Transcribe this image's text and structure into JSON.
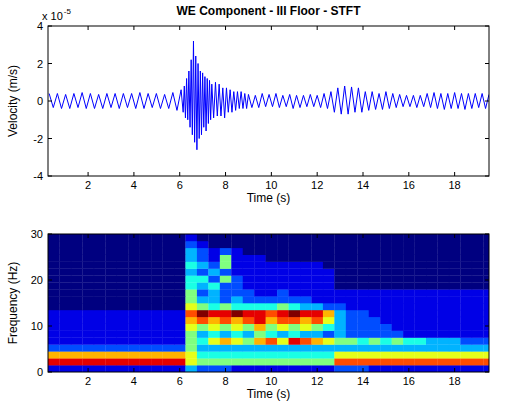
{
  "chart_data": [
    {
      "type": "line",
      "title": "WE Component - III Floor - STFT",
      "x_label": "Time (s)",
      "y_label": "Velocity (m/s)",
      "y_scale_label": {
        "base": "x 10",
        "exponent": "-5"
      },
      "xlim": [
        0.25,
        19.5
      ],
      "ylim": [
        -4,
        4
      ],
      "xticks": [
        2,
        4,
        6,
        8,
        10,
        12,
        14,
        16,
        18
      ],
      "yticks": [
        -4,
        -2,
        0,
        2,
        4
      ],
      "x": [
        0.3,
        0.48,
        0.66,
        0.84,
        1.02,
        1.2,
        1.38,
        1.56,
        1.74,
        1.92,
        2.1,
        2.28,
        2.46,
        2.64,
        2.82,
        3.0,
        3.18,
        3.36,
        3.54,
        3.72,
        3.9,
        4.08,
        4.26,
        4.44,
        4.62,
        4.8,
        4.98,
        5.16,
        5.34,
        5.52,
        5.7,
        5.88,
        6.06,
        6.15,
        6.2,
        6.25,
        6.3,
        6.35,
        6.4,
        6.45,
        6.5,
        6.55,
        6.6,
        6.65,
        6.7,
        6.75,
        6.8,
        6.85,
        6.9,
        6.95,
        7.0,
        7.05,
        7.1,
        7.15,
        7.2,
        7.25,
        7.3,
        7.35,
        7.4,
        7.48,
        7.56,
        7.64,
        7.72,
        7.8,
        7.88,
        7.96,
        8.04,
        8.12,
        8.2,
        8.28,
        8.36,
        8.44,
        8.52,
        8.6,
        8.68,
        8.76,
        8.84,
        8.92,
        9.0,
        9.15,
        9.3,
        9.45,
        9.6,
        9.75,
        9.9,
        10.05,
        10.2,
        10.35,
        10.5,
        10.65,
        10.8,
        10.95,
        11.1,
        11.25,
        11.4,
        11.55,
        11.7,
        11.85,
        12.0,
        12.15,
        12.3,
        12.45,
        12.6,
        12.75,
        12.9,
        13.05,
        13.2,
        13.35,
        13.5,
        13.65,
        13.8,
        13.95,
        14.1,
        14.25,
        14.4,
        14.55,
        14.7,
        14.85,
        15.0,
        15.15,
        15.3,
        15.45,
        15.6,
        15.75,
        15.9,
        16.05,
        16.2,
        16.35,
        16.5,
        16.65,
        16.8,
        16.95,
        17.1,
        17.25,
        17.4,
        17.55,
        17.7,
        17.85,
        18.0,
        18.15,
        18.3,
        18.45,
        18.6,
        18.75,
        18.9,
        19.05,
        19.2,
        19.35,
        19.5
      ],
      "series": [
        {
          "color": "#0000ff",
          "values": [
            0.4,
            -0.35,
            0.4,
            -0.4,
            0.35,
            -0.4,
            0.4,
            -0.35,
            0.45,
            -0.4,
            0.4,
            -0.4,
            0.35,
            -0.4,
            0.4,
            -0.35,
            0.4,
            -0.4,
            0.4,
            -0.35,
            0.4,
            -0.4,
            0.45,
            -0.4,
            0.4,
            -0.35,
            0.4,
            -0.4,
            0.35,
            -0.4,
            0.45,
            -0.5,
            0.6,
            -0.6,
            0.8,
            -0.9,
            1.2,
            -1.0,
            1.6,
            -1.4,
            2.2,
            -1.8,
            3.2,
            -2.2,
            2.4,
            -2.6,
            2.0,
            -2.0,
            1.6,
            -1.8,
            1.5,
            -1.4,
            1.3,
            -1.6,
            1.2,
            -1.2,
            1.1,
            -1.0,
            0.9,
            -0.9,
            1.0,
            -0.8,
            0.9,
            -0.8,
            0.7,
            -0.9,
            0.7,
            -0.6,
            0.6,
            -0.6,
            0.5,
            -0.5,
            0.5,
            -0.4,
            0.5,
            -0.4,
            0.4,
            -0.4,
            0.35,
            -0.35,
            0.3,
            -0.35,
            0.4,
            -0.3,
            0.35,
            -0.3,
            0.4,
            -0.35,
            0.3,
            -0.3,
            0.35,
            -0.4,
            0.3,
            -0.35,
            0.3,
            -0.3,
            0.35,
            -0.3,
            0.3,
            -0.35,
            0.4,
            -0.4,
            0.5,
            -0.6,
            0.7,
            -0.7,
            0.8,
            -0.7,
            0.75,
            -0.6,
            0.7,
            -0.6,
            0.5,
            -0.5,
            0.5,
            -0.45,
            0.4,
            -0.45,
            0.5,
            -0.4,
            0.4,
            -0.35,
            0.35,
            -0.3,
            0.3,
            -0.3,
            0.3,
            -0.35,
            0.3,
            -0.3,
            0.4,
            -0.35,
            0.45,
            -0.4,
            0.4,
            -0.45,
            0.4,
            -0.4,
            0.45,
            -0.4,
            0.4,
            -0.45,
            0.4,
            -0.4,
            0.4,
            -0.35,
            0.4,
            -0.4,
            0.35
          ]
        }
      ]
    },
    {
      "type": "heatmap",
      "x_label": "Time (s)",
      "y_label": "Frequency (Hz)",
      "xlim": [
        0.25,
        19.5
      ],
      "ylim": [
        0,
        30
      ],
      "xticks": [
        2,
        4,
        6,
        8,
        10,
        12,
        14,
        16,
        18
      ],
      "yticks": [
        0,
        10,
        20,
        30
      ],
      "color": "jet",
      "color_range": [
        0,
        10
      ],
      "x_edges": [
        0.25,
        0.75,
        1.25,
        1.75,
        2.25,
        2.75,
        3.25,
        3.75,
        4.25,
        4.75,
        5.25,
        5.75,
        6.25,
        6.75,
        7.25,
        7.75,
        8.25,
        8.75,
        9.25,
        9.75,
        10.25,
        10.75,
        11.25,
        11.75,
        12.25,
        12.75,
        13.25,
        13.75,
        14.25,
        14.75,
        15.25,
        15.75,
        16.25,
        16.75,
        17.25,
        17.75,
        18.25,
        18.75,
        19.25,
        19.5
      ],
      "y_edges": [
        0,
        1.5,
        3,
        4.5,
        6,
        7.5,
        9,
        10.5,
        12,
        13.5,
        15,
        16.5,
        18,
        19.5,
        21,
        22.5,
        24,
        25.5,
        27,
        28.5,
        30
      ],
      "cells": [
        [
          1,
          1,
          1,
          1,
          1,
          1,
          1,
          1,
          1,
          1,
          1,
          1,
          3,
          2,
          2,
          2,
          1,
          1,
          1,
          1,
          1,
          1,
          1,
          1,
          1,
          2,
          2,
          2,
          1,
          1,
          1,
          1,
          1,
          1,
          1,
          1,
          1,
          1,
          1
        ],
        [
          9,
          9,
          9,
          9,
          9,
          9,
          9,
          9,
          9,
          9,
          9,
          9,
          6,
          5,
          5,
          5,
          5,
          5,
          5,
          5,
          5,
          5,
          5,
          5,
          5,
          8,
          8,
          8,
          8,
          8,
          8,
          8,
          8,
          8,
          8,
          8,
          8,
          8,
          8
        ],
        [
          7,
          7,
          7,
          7,
          7,
          7,
          7,
          7,
          7,
          7,
          7,
          7,
          6,
          4,
          4,
          4,
          4,
          4,
          4,
          4,
          4,
          4,
          4,
          4,
          4,
          6,
          6,
          6,
          6,
          6,
          6,
          6,
          6,
          6,
          6,
          6,
          6,
          6,
          6
        ],
        [
          2,
          2,
          2,
          2,
          2,
          2,
          2,
          2,
          2,
          2,
          2,
          2,
          5,
          3,
          3,
          3,
          3,
          3,
          3,
          3,
          3,
          3,
          3,
          3,
          3,
          3,
          3,
          3,
          3,
          3,
          3,
          3,
          3,
          3,
          3,
          3,
          3,
          3,
          3
        ],
        [
          1,
          1,
          1,
          1,
          1,
          1,
          1,
          1,
          1,
          1,
          1,
          1,
          5,
          4,
          6,
          7,
          6,
          5,
          7,
          8,
          6,
          9,
          8,
          7,
          6,
          5,
          5,
          4,
          5,
          4,
          5,
          4,
          4,
          3,
          3,
          3,
          2,
          2,
          2
        ],
        [
          1,
          1,
          1,
          1,
          1,
          1,
          1,
          1,
          1,
          1,
          1,
          1,
          5,
          3,
          4,
          3,
          4,
          3,
          5,
          4,
          3,
          4,
          3,
          3,
          2,
          3,
          2,
          2,
          2,
          2,
          2,
          1,
          1,
          1,
          1,
          1,
          1,
          1,
          1
        ],
        [
          1,
          1,
          1,
          1,
          1,
          1,
          1,
          1,
          1,
          1,
          1,
          1,
          6,
          5,
          6,
          5,
          6,
          5,
          7,
          5,
          6,
          5,
          6,
          5,
          4,
          3,
          2,
          2,
          2,
          2,
          1,
          1,
          1,
          1,
          1,
          1,
          1,
          1,
          1
        ],
        [
          1,
          1,
          1,
          1,
          1,
          1,
          1,
          1,
          1,
          1,
          1,
          1,
          7,
          8,
          7,
          8,
          7,
          8,
          9,
          7,
          8,
          8,
          7,
          8,
          6,
          3,
          2,
          2,
          2,
          1,
          1,
          1,
          1,
          1,
          1,
          1,
          1,
          1,
          1
        ],
        [
          1,
          1,
          1,
          1,
          1,
          1,
          1,
          1,
          1,
          1,
          1,
          1,
          8,
          10,
          9,
          9,
          10,
          9,
          9,
          8,
          9,
          10,
          9,
          9,
          7,
          3,
          2,
          2,
          1,
          1,
          1,
          1,
          1,
          1,
          1,
          1,
          1,
          1,
          1
        ],
        [
          0,
          0,
          0,
          0,
          0,
          0,
          0,
          0,
          0,
          0,
          0,
          0,
          6,
          5,
          4,
          5,
          4,
          4,
          4,
          4,
          5,
          4,
          3,
          3,
          2,
          2,
          1,
          1,
          1,
          1,
          1,
          1,
          1,
          1,
          1,
          1,
          1,
          1,
          1
        ],
        [
          0,
          0,
          0,
          0,
          0,
          0,
          0,
          0,
          0,
          0,
          0,
          0,
          5,
          3,
          3,
          2,
          3,
          2,
          2,
          2,
          2,
          2,
          2,
          1,
          1,
          1,
          1,
          1,
          1,
          1,
          1,
          1,
          1,
          1,
          1,
          1,
          1,
          1,
          1
        ],
        [
          0,
          0,
          0,
          0,
          0,
          0,
          0,
          0,
          0,
          0,
          0,
          0,
          5,
          2,
          3,
          2,
          2,
          2,
          1,
          1,
          2,
          1,
          1,
          1,
          1,
          1,
          1,
          1,
          1,
          1,
          1,
          1,
          1,
          1,
          1,
          1,
          1,
          1,
          1
        ],
        [
          0,
          0,
          0,
          0,
          0,
          0,
          0,
          0,
          0,
          0,
          0,
          0,
          4,
          3,
          4,
          2,
          2,
          1,
          1,
          1,
          1,
          1,
          1,
          1,
          1,
          0,
          0,
          0,
          0,
          0,
          0,
          0,
          0,
          0,
          0,
          0,
          0,
          0,
          0
        ],
        [
          0,
          0,
          0,
          0,
          0,
          0,
          0,
          0,
          0,
          0,
          0,
          0,
          4,
          4,
          2,
          5,
          2,
          1,
          1,
          1,
          1,
          1,
          1,
          1,
          1,
          0,
          0,
          0,
          0,
          0,
          0,
          0,
          0,
          0,
          0,
          0,
          0,
          0,
          0
        ],
        [
          0,
          0,
          0,
          0,
          0,
          0,
          0,
          0,
          0,
          0,
          0,
          0,
          3,
          2,
          3,
          2,
          1,
          1,
          1,
          1,
          1,
          1,
          1,
          1,
          1,
          0,
          0,
          0,
          0,
          0,
          0,
          0,
          0,
          0,
          0,
          0,
          0,
          0,
          0
        ],
        [
          0,
          0,
          0,
          0,
          0,
          0,
          0,
          0,
          0,
          0,
          0,
          0,
          4,
          3,
          2,
          5,
          1,
          1,
          1,
          1,
          1,
          1,
          1,
          1,
          0,
          0,
          0,
          0,
          0,
          0,
          0,
          0,
          0,
          0,
          0,
          0,
          0,
          0,
          0
        ],
        [
          0,
          0,
          0,
          0,
          0,
          0,
          0,
          0,
          0,
          0,
          0,
          0,
          3,
          2,
          1,
          5,
          1,
          1,
          1,
          0,
          0,
          0,
          0,
          0,
          0,
          0,
          0,
          0,
          0,
          0,
          0,
          0,
          0,
          0,
          0,
          0,
          0,
          0,
          0
        ],
        [
          0,
          0,
          0,
          0,
          0,
          0,
          0,
          0,
          0,
          0,
          0,
          0,
          3,
          2,
          1,
          2,
          1,
          0,
          0,
          0,
          0,
          0,
          0,
          0,
          0,
          0,
          0,
          0,
          0,
          0,
          0,
          0,
          0,
          0,
          0,
          0,
          0,
          0,
          0
        ],
        [
          0,
          0,
          0,
          0,
          0,
          0,
          0,
          0,
          0,
          0,
          0,
          0,
          2,
          1,
          0,
          0,
          0,
          0,
          0,
          0,
          0,
          0,
          0,
          0,
          0,
          0,
          0,
          0,
          0,
          0,
          0,
          0,
          0,
          0,
          0,
          0,
          0,
          0,
          0
        ],
        [
          0,
          0,
          0,
          0,
          0,
          0,
          0,
          0,
          0,
          0,
          0,
          0,
          1,
          0,
          0,
          0,
          0,
          0,
          0,
          0,
          0,
          0,
          0,
          0,
          0,
          0,
          0,
          0,
          0,
          0,
          0,
          0,
          0,
          0,
          0,
          0,
          0,
          0,
          0
        ]
      ]
    }
  ]
}
